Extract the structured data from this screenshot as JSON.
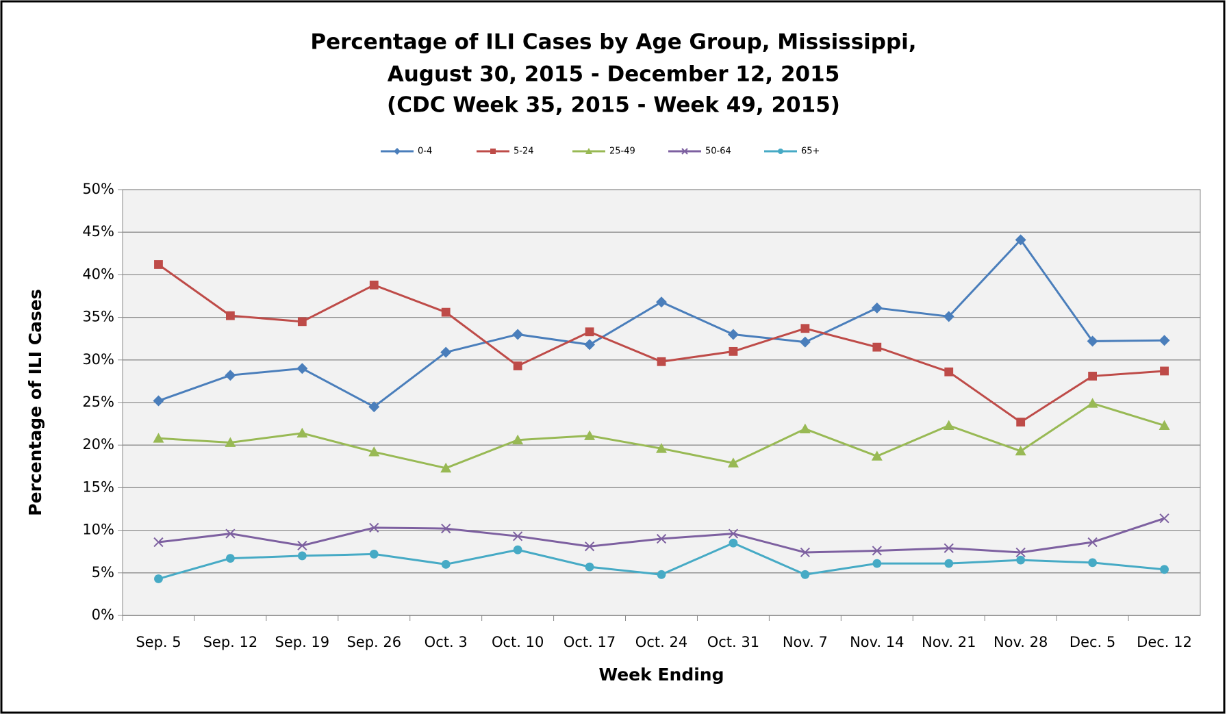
{
  "chart_data": {
    "type": "line",
    "title": [
      "Percentage of ILI Cases by Age Group, Mississippi,",
      "August 30, 2015 - December 12, 2015",
      "(CDC Week 35, 2015 - Week 49, 2015)"
    ],
    "x_label": "Week Ending",
    "y_label": "Percentage of ILI Cases",
    "categories": [
      "Sep. 5",
      "Sep. 12",
      "Sep. 19",
      "Sep. 26",
      "Oct. 3",
      "Oct. 10",
      "Oct. 17",
      "Oct. 24",
      "Oct. 31",
      "Nov. 7",
      "Nov. 14",
      "Nov. 21",
      "Nov. 28",
      "Dec. 5",
      "Dec. 12"
    ],
    "series": [
      {
        "name": "0-4",
        "color": "#4a7ebb",
        "marker": "diamond",
        "values": [
          25.2,
          28.2,
          29.0,
          24.5,
          30.9,
          33.0,
          31.8,
          36.8,
          33.0,
          32.1,
          36.1,
          35.1,
          44.1,
          32.2,
          32.3
        ]
      },
      {
        "name": "5-24",
        "color": "#be4b48",
        "marker": "square",
        "values": [
          41.2,
          35.2,
          34.5,
          38.8,
          35.6,
          29.3,
          33.3,
          29.8,
          31.0,
          33.7,
          31.5,
          28.6,
          22.7,
          28.1,
          28.7
        ]
      },
      {
        "name": "25-49",
        "color": "#98b954",
        "marker": "triangle",
        "values": [
          20.8,
          20.3,
          21.4,
          19.2,
          17.3,
          20.6,
          21.1,
          19.6,
          17.9,
          21.9,
          18.7,
          22.3,
          19.3,
          24.9,
          22.3
        ]
      },
      {
        "name": "50-64",
        "color": "#7d60a0",
        "marker": "x",
        "values": [
          8.6,
          9.6,
          8.2,
          10.3,
          10.2,
          9.3,
          8.1,
          9.0,
          9.6,
          7.4,
          7.6,
          7.9,
          7.4,
          8.6,
          11.4
        ]
      },
      {
        "name": "65+",
        "color": "#46aac5",
        "marker": "circle",
        "values": [
          4.3,
          6.7,
          7.0,
          7.2,
          6.0,
          7.7,
          5.7,
          4.8,
          8.5,
          4.8,
          6.1,
          6.1,
          6.5,
          6.2,
          5.4
        ]
      }
    ],
    "ylim": [
      0,
      50
    ],
    "yticks": [
      {
        "value": 0,
        "label": "0%"
      },
      {
        "value": 5,
        "label": "5%"
      },
      {
        "value": 10,
        "label": "10%"
      },
      {
        "value": 15,
        "label": "15%"
      },
      {
        "value": 20,
        "label": "20%"
      },
      {
        "value": 25,
        "label": "25%"
      },
      {
        "value": 30,
        "label": "30%"
      },
      {
        "value": 35,
        "label": "35%"
      },
      {
        "value": 40,
        "label": "40%"
      },
      {
        "value": 45,
        "label": "45%"
      },
      {
        "value": 50,
        "label": "50%"
      }
    ],
    "grid": true,
    "legend": "top"
  }
}
